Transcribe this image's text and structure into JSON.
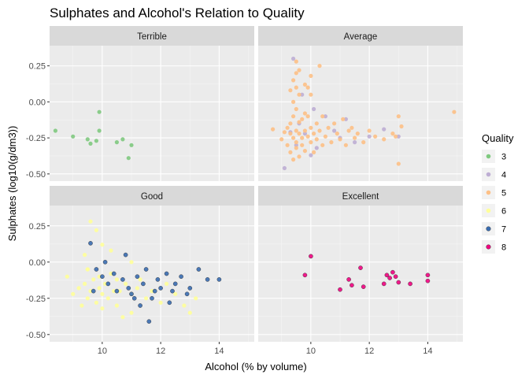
{
  "chart_data": {
    "type": "scatter",
    "title": "Sulphates and Alcohol's Relation to Quality",
    "xlabel": "Alcohol (% by volume)",
    "ylabel": "Sulphates (log10(g/dm3))",
    "xlim": [
      8.2,
      15.2
    ],
    "ylim": [
      -0.55,
      0.39
    ],
    "x_ticks": [
      10,
      12,
      14
    ],
    "y_ticks": [
      0.25,
      0.0,
      -0.25,
      -0.5
    ],
    "y_tick_labels": [
      "0.25",
      "0.00",
      "-0.25",
      "-0.50"
    ],
    "legend": {
      "title": "Quality",
      "placement": "right",
      "entries": [
        {
          "label": "3",
          "color": "#7fc97f"
        },
        {
          "label": "4",
          "color": "#beaed4"
        },
        {
          "label": "5",
          "color": "#fdc086"
        },
        {
          "label": "6",
          "color": "#ffff99"
        },
        {
          "label": "7",
          "color": "#386cb0"
        },
        {
          "label": "8",
          "color": "#f0027f"
        }
      ]
    },
    "panels": [
      {
        "label": "Terrible",
        "series": [
          {
            "quality": "3",
            "color": "#7fc97f",
            "x": [
              8.4,
              9.0,
              9.5,
              9.8,
              9.6,
              9.9,
              9.9,
              10.5,
              10.7,
              11.0,
              10.9
            ],
            "y": [
              -0.2,
              -0.24,
              -0.26,
              -0.27,
              -0.29,
              -0.2,
              -0.07,
              -0.28,
              -0.26,
              -0.3,
              -0.39
            ]
          }
        ]
      },
      {
        "label": "Average",
        "series": [
          {
            "quality": "4",
            "color": "#beaed4",
            "x": [
              9.1,
              9.3,
              9.4,
              9.5,
              9.6,
              9.8,
              10.0,
              10.2,
              10.5,
              10.8,
              11.0,
              11.2,
              11.5,
              12.0,
              12.5,
              13.0,
              9.7,
              10.1
            ],
            "y": [
              -0.46,
              -0.21,
              0.3,
              -0.3,
              -0.15,
              -0.22,
              -0.37,
              -0.32,
              -0.1,
              -0.2,
              -0.25,
              -0.12,
              -0.28,
              -0.24,
              -0.19,
              -0.24,
              0.05,
              -0.05
            ]
          },
          {
            "quality": "5",
            "color": "#fdc086",
            "x": [
              8.7,
              9.0,
              9.1,
              9.2,
              9.2,
              9.3,
              9.3,
              9.3,
              9.4,
              9.4,
              9.4,
              9.4,
              9.5,
              9.5,
              9.5,
              9.5,
              9.5,
              9.6,
              9.6,
              9.6,
              9.6,
              9.7,
              9.7,
              9.7,
              9.8,
              9.8,
              9.8,
              9.9,
              9.9,
              10.0,
              10.0,
              10.0,
              10.1,
              10.1,
              10.2,
              10.2,
              10.3,
              10.4,
              10.4,
              10.5,
              10.6,
              10.7,
              10.8,
              10.9,
              11.0,
              11.1,
              11.2,
              11.3,
              11.4,
              11.5,
              11.6,
              11.8,
              12.0,
              12.2,
              12.5,
              12.8,
              13.0,
              9.4,
              9.6,
              9.5,
              9.8,
              10.0,
              9.3,
              9.5,
              9.9,
              10.3,
              14.9,
              13.0,
              13.1,
              12.9
            ],
            "y": [
              -0.19,
              -0.26,
              -0.21,
              -0.18,
              -0.3,
              -0.22,
              -0.15,
              -0.35,
              -0.25,
              -0.1,
              0.0,
              -0.4,
              -0.2,
              -0.05,
              0.1,
              -0.28,
              -0.32,
              -0.22,
              -0.14,
              0.05,
              -0.38,
              -0.25,
              -0.12,
              -0.3,
              -0.2,
              -0.08,
              -0.34,
              -0.24,
              -0.1,
              -0.18,
              -0.28,
              0.05,
              -0.22,
              -0.35,
              -0.15,
              -0.26,
              -0.2,
              -0.1,
              -0.3,
              -0.24,
              -0.18,
              -0.28,
              -0.15,
              -0.22,
              -0.26,
              -0.12,
              -0.3,
              -0.2,
              -0.18,
              -0.25,
              -0.22,
              -0.28,
              -0.2,
              -0.24,
              -0.26,
              -0.22,
              -0.43,
              0.15,
              0.22,
              0.28,
              0.12,
              0.18,
              0.08,
              0.2,
              0.1,
              0.25,
              -0.07,
              -0.1,
              -0.17,
              -0.24
            ]
          }
        ]
      },
      {
        "label": "Good",
        "series": [
          {
            "quality": "6",
            "color": "#ffff99",
            "x": [
              8.8,
              9.0,
              9.2,
              9.3,
              9.4,
              9.5,
              9.5,
              9.6,
              9.7,
              9.8,
              9.9,
              9.9,
              10.0,
              10.0,
              10.1,
              10.2,
              10.3,
              10.4,
              10.5,
              10.5,
              10.6,
              10.8,
              11.0,
              11.0,
              11.2,
              11.3,
              11.5,
              11.7,
              12.0,
              12.2,
              12.5,
              12.8,
              13.0,
              13.2,
              9.6,
              9.8,
              10.0,
              9.4,
              10.3,
              11.0,
              9.5,
              10.7
            ],
            "y": [
              -0.1,
              -0.22,
              -0.18,
              -0.3,
              -0.15,
              -0.25,
              -0.05,
              -0.2,
              -0.12,
              -0.28,
              -0.18,
              -0.1,
              -0.22,
              -0.32,
              -0.15,
              -0.25,
              -0.08,
              -0.2,
              -0.12,
              -0.3,
              -0.2,
              -0.15,
              -0.22,
              -0.35,
              -0.18,
              -0.12,
              -0.25,
              -0.2,
              -0.28,
              -0.15,
              -0.22,
              -0.3,
              -0.35,
              -0.25,
              0.28,
              0.22,
              0.12,
              0.05,
              0.08,
              0.0,
              -0.05,
              -0.38
            ]
          },
          {
            "quality": "7",
            "color": "#386cb0",
            "x": [
              9.6,
              9.8,
              10.0,
              10.2,
              10.4,
              10.5,
              10.7,
              10.9,
              11.0,
              11.2,
              11.4,
              11.5,
              11.7,
              11.9,
              12.0,
              12.2,
              12.4,
              12.5,
              12.7,
              12.9,
              13.0,
              13.3,
              13.6,
              14.0,
              10.8,
              11.3,
              11.8,
              12.3,
              9.7,
              10.1,
              11.1,
              11.6
            ],
            "y": [
              0.13,
              -0.05,
              -0.1,
              -0.15,
              -0.08,
              -0.2,
              -0.12,
              -0.18,
              -0.22,
              -0.1,
              -0.15,
              -0.05,
              -0.25,
              -0.12,
              -0.18,
              -0.08,
              -0.2,
              -0.15,
              -0.1,
              -0.22,
              -0.18,
              -0.05,
              -0.12,
              -0.12,
              0.05,
              -0.3,
              -0.2,
              -0.28,
              -0.2,
              0.0,
              -0.25,
              -0.41
            ]
          }
        ]
      },
      {
        "label": "Excellent",
        "series": [
          {
            "quality": "8",
            "color": "#f0027f",
            "x": [
              9.8,
              10.0,
              11.0,
              11.3,
              11.4,
              11.7,
              11.8,
              12.5,
              12.6,
              12.7,
              12.8,
              12.9,
              13.0,
              13.4,
              14.0,
              14.0
            ],
            "y": [
              -0.09,
              0.04,
              -0.19,
              -0.12,
              -0.16,
              -0.04,
              -0.17,
              -0.15,
              -0.09,
              -0.11,
              -0.07,
              -0.1,
              -0.14,
              -0.15,
              -0.09,
              -0.13
            ]
          }
        ]
      }
    ]
  }
}
